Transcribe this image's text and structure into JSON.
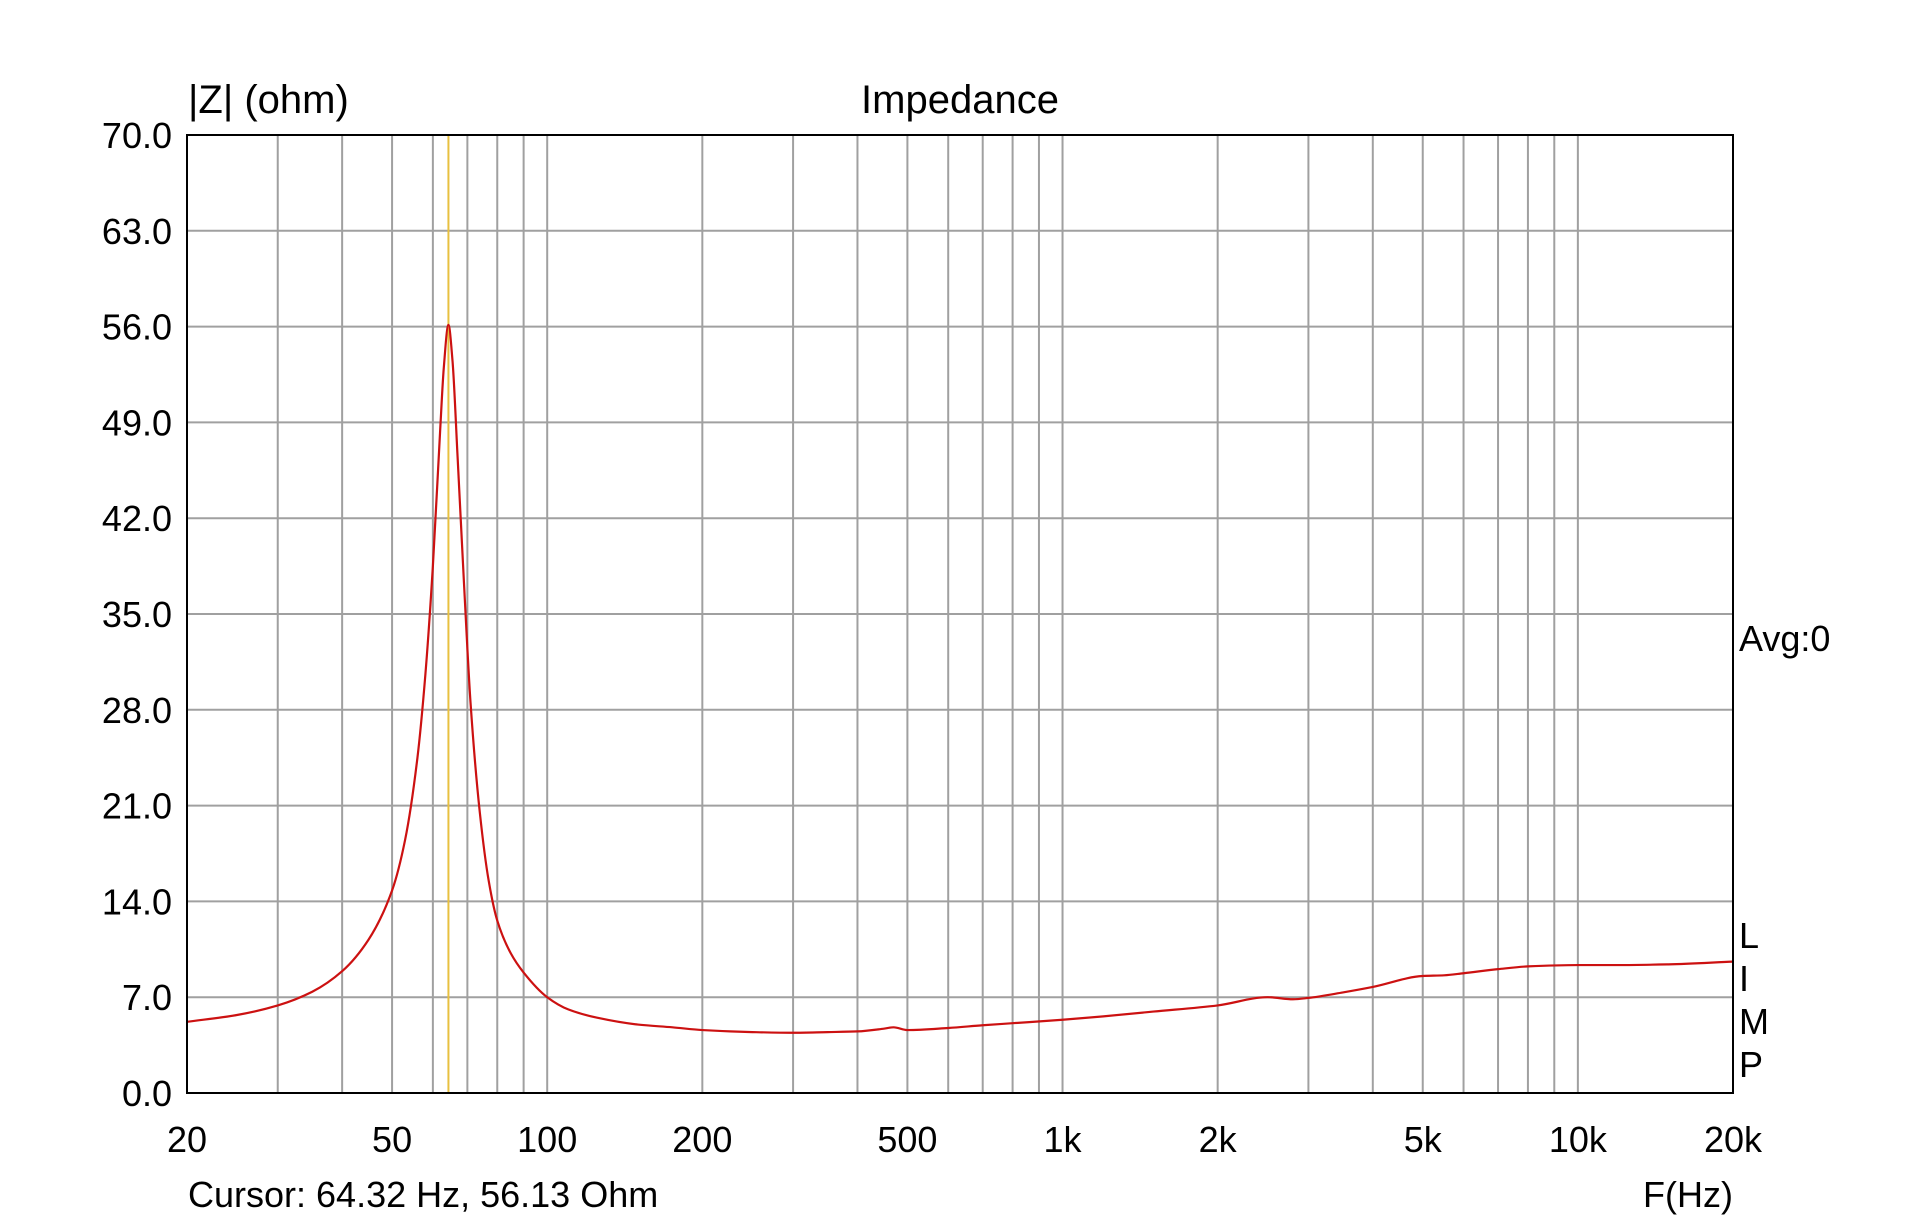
{
  "chart_data": {
    "type": "line",
    "title": "Impedance",
    "ylabel": "|Z| (ohm)",
    "xlabel": "F(Hz)",
    "x_scale": "log",
    "xlim": [
      20,
      20000
    ],
    "ylim": [
      0,
      70
    ],
    "grid": true,
    "y_ticks": [
      "0.0",
      "7.0",
      "14.0",
      "21.0",
      "28.0",
      "35.0",
      "42.0",
      "49.0",
      "56.0",
      "63.0",
      "70.0"
    ],
    "x_ticks": [
      {
        "value": 20,
        "label": "20"
      },
      {
        "value": 50,
        "label": "50"
      },
      {
        "value": 100,
        "label": "100"
      },
      {
        "value": 200,
        "label": "200"
      },
      {
        "value": 500,
        "label": "500"
      },
      {
        "value": 1000,
        "label": "1k"
      },
      {
        "value": 2000,
        "label": "2k"
      },
      {
        "value": 5000,
        "label": "5k"
      },
      {
        "value": 10000,
        "label": "10k"
      },
      {
        "value": 20000,
        "label": "20k"
      }
    ],
    "x_minor_gridlines": [
      30,
      40,
      60,
      70,
      80,
      90,
      300,
      400,
      600,
      700,
      800,
      900,
      3000,
      4000,
      6000,
      7000,
      8000,
      9000
    ],
    "side_text": "Avg:0",
    "side_letters": [
      "L",
      "I",
      "M",
      "P"
    ],
    "cursor": {
      "frequency_hz": 64.32,
      "label": "Cursor: 64.32 Hz, 56.13 Ohm"
    },
    "colors": {
      "curve": "#cc1111",
      "cursor_line": "#e8c040",
      "grid": "#a0a0a0",
      "frame": "#000000"
    },
    "series": [
      {
        "x": [
          20,
          25,
          30,
          35,
          40,
          45,
          50,
          53,
          56,
          58,
          60,
          62,
          63,
          64.32,
          65.5,
          67,
          69,
          71,
          74,
          77,
          80,
          85,
          90,
          100,
          110,
          125,
          150,
          175,
          200,
          250,
          300,
          350,
          400,
          450,
          470,
          500,
          600,
          700,
          800,
          1000,
          1200,
          1500,
          2000,
          2500,
          2800,
          3000,
          3500,
          4000,
          5000,
          5500,
          6000,
          7000,
          8000,
          10000,
          12000,
          15000,
          20000
        ],
        "y": [
          5.2,
          5.7,
          6.4,
          7.4,
          8.9,
          11.2,
          14.8,
          18.5,
          24.5,
          30.5,
          38.5,
          48.5,
          53.0,
          56.13,
          53.5,
          46.5,
          37.0,
          28.5,
          20.5,
          15.5,
          12.6,
          10.2,
          8.8,
          7.0,
          6.1,
          5.5,
          5.0,
          4.8,
          4.6,
          4.45,
          4.4,
          4.45,
          4.5,
          4.7,
          4.8,
          4.6,
          4.75,
          4.95,
          5.1,
          5.35,
          5.6,
          5.95,
          6.4,
          7.0,
          6.85,
          6.95,
          7.35,
          7.75,
          8.55,
          8.6,
          8.75,
          9.05,
          9.25,
          9.35,
          9.35,
          9.4,
          9.6
        ]
      }
    ]
  }
}
